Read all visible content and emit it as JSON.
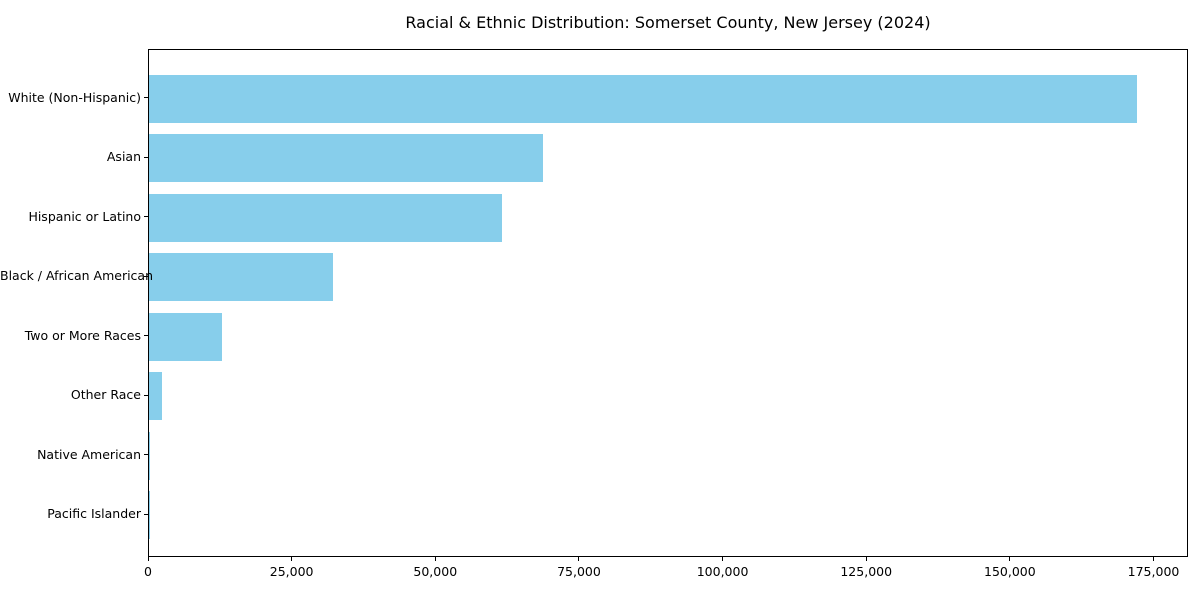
{
  "chart_data": {
    "type": "bar",
    "orientation": "horizontal",
    "title": "Racial & Ethnic Distribution: Somerset County, New Jersey (2024)",
    "categories": [
      "White (Non-Hispanic)",
      "Asian",
      "Hispanic or Latino",
      "Black / African American",
      "Two or More Races",
      "Other Race",
      "Native American",
      "Pacific Islander"
    ],
    "values": [
      172000,
      68500,
      61400,
      32000,
      12700,
      2300,
      250,
      80
    ],
    "xlabel": "",
    "ylabel": "",
    "xlim": [
      0,
      181000
    ],
    "xticks": [
      0,
      25000,
      50000,
      75000,
      100000,
      125000,
      150000,
      175000
    ],
    "xtick_labels": [
      "0",
      "25,000",
      "50,000",
      "75,000",
      "100,000",
      "125,000",
      "150,000",
      "175,000"
    ],
    "bar_color": "#87CEEB",
    "axis_color": "#000000",
    "background_color": "#ffffff",
    "grid": false,
    "legend": null
  }
}
